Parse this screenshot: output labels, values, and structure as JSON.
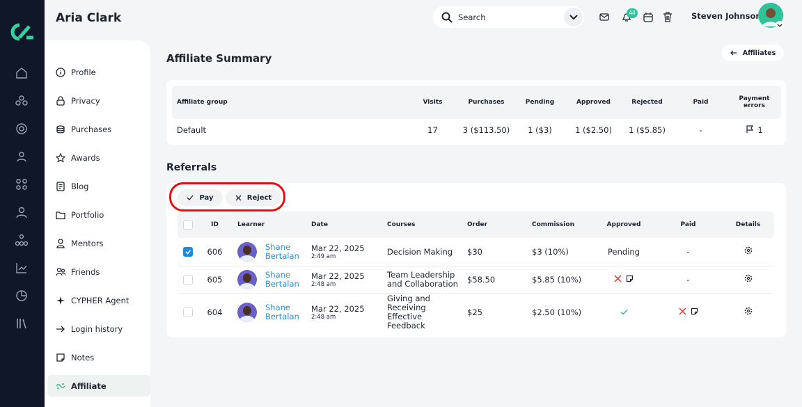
{
  "header": {
    "title": "Aria Clark",
    "search_placeholder": "Search",
    "notification_count": "44",
    "user_name": "Steven Johnson"
  },
  "nav": {
    "items": [
      "Profile",
      "Privacy",
      "Purchases",
      "Awards",
      "Blog",
      "Portfolio",
      "Mentors",
      "Friends",
      "CYPHER Agent",
      "Login history",
      "Notes",
      "Affiliate"
    ]
  },
  "page": {
    "title": "Affiliate Summary",
    "back_button": "Affiliates"
  },
  "summary": {
    "headers": [
      "Affiliate group",
      "Visits",
      "Purchases",
      "Pending",
      "Approved",
      "Rejected",
      "Paid",
      "Payment errors"
    ],
    "rows": [
      [
        "Default",
        "17",
        "3 ($113.50)",
        "1 ($3)",
        "1 ($2.50)",
        "1 ($5.85)",
        "-",
        "1"
      ]
    ]
  },
  "referrals": {
    "title": "Referrals",
    "actions": [
      "Pay",
      "Reject"
    ],
    "headers": [
      "ID",
      "Learner",
      "Date",
      "Courses",
      "Order",
      "Commission",
      "Approved",
      "Paid",
      "Details"
    ],
    "rows": [
      {
        "id": "606",
        "learner": "Shane Bertalan",
        "date": "Mar 22, 2025",
        "time": "2:49 am",
        "course": "Decision Making",
        "order": "$30",
        "commission": "$3 (10%)",
        "approved": "Pending",
        "paid": "-"
      },
      {
        "id": "605",
        "learner": "Shane Bertalan",
        "date": "Mar 22, 2025",
        "time": "2:48 am",
        "course": "Team Leadership and Collaboration",
        "order": "$58.50",
        "commission": "$5.85 (10%)",
        "paid": "-"
      },
      {
        "id": "604",
        "learner": "Shane Bertalan",
        "date": "Mar 22, 2025",
        "time": "2:48 am",
        "course": "Giving and Receiving Effective Feedback",
        "order": "$25",
        "commission": "$2.50 (10%)"
      }
    ]
  }
}
